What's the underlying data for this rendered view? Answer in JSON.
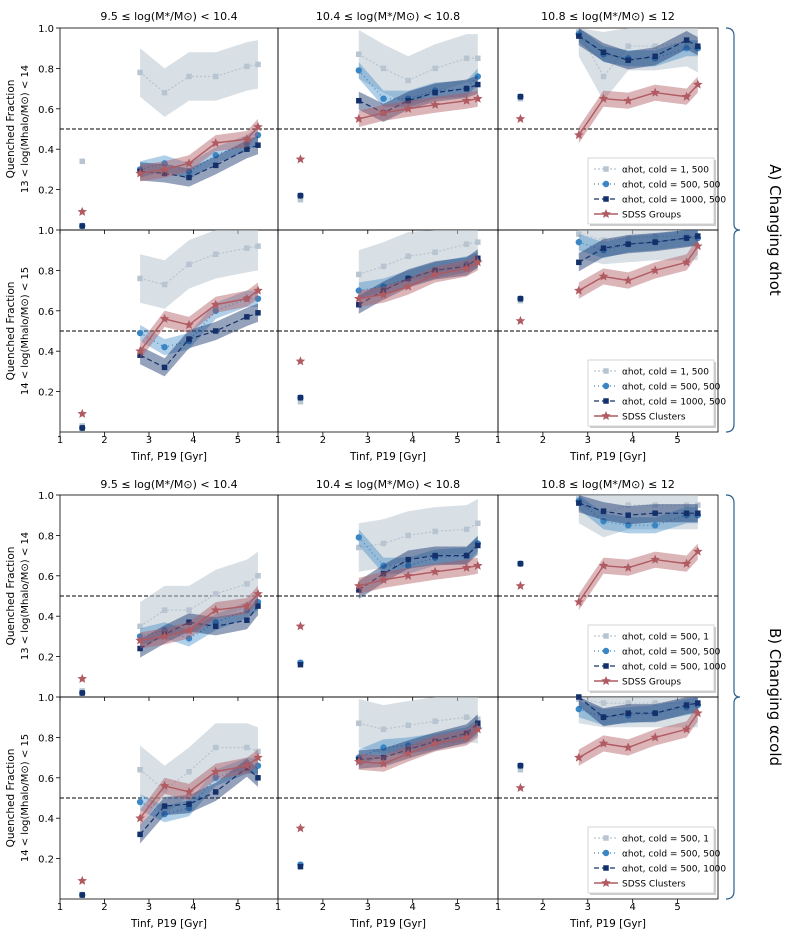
{
  "figure": {
    "col_titles": [
      "9.5 ≤ log(M*/M⊙) < 10.4",
      "10.4 ≤ log(M*/M⊙) < 10.8",
      "10.8 ≤ log(M*/M⊙) ≤ 12"
    ],
    "row_ylabels": [
      [
        "Quenched Fraction",
        "13 < log(Mhalo/M⊙) < 14"
      ],
      [
        "Quenched Fraction",
        "14 < log(Mhalo/M⊙) < 15"
      ],
      [
        "Quenched Fraction",
        "13 < log(Mhalo/M⊙) < 14"
      ],
      [
        "Quenched Fraction",
        "14 < log(Mhalo/M⊙) < 15"
      ]
    ],
    "xlabel": "Tinf, P19 [Gyr]",
    "group_labels": [
      "A) Changing αhot",
      "B) Changing αcold"
    ],
    "xticks": [
      "1",
      "2",
      "3",
      "4",
      "5"
    ],
    "yticks": [
      "0.2",
      "0.4",
      "0.6",
      "0.8",
      "1.0"
    ]
  },
  "colors": {
    "light": "#b8c4d0",
    "mid": "#3a86c5",
    "dark": "#14306a",
    "sdss": "#b05a62",
    "ref_line": "#000000"
  },
  "chart_data": [
    {
      "type": "line",
      "title": "A) Changing αhot",
      "xlabel": "Tinf, P19 [Gyr]",
      "ylabel": "Quenched Fraction",
      "xlim": [
        1,
        5.9
      ],
      "ylim": [
        0,
        1
      ],
      "reference_line_y": 0.5,
      "legends": [
        [
          "αhot, cold = 1, 500",
          "αhot, cold = 500, 500",
          "αhot, cold = 1000, 500",
          "SDSS Groups"
        ],
        [
          "αhot, cold = 1, 500",
          "αhot, cold = 500, 500",
          "αhot, cold = 1000, 500",
          "SDSS Clusters"
        ]
      ],
      "x_binned": [
        2.8,
        3.35,
        3.9,
        4.5,
        5.2,
        5.45
      ],
      "x_field": 1.5,
      "rows": [
        [
          {
            "series": [
              {
                "name": "αhot, cold = 1, 500",
                "values": [
                  0.78,
                  0.68,
                  0.76,
                  0.76,
                  0.81,
                  0.82
                ],
                "field": 0.34
              },
              {
                "name": "αhot, cold = 500, 500",
                "values": [
                  0.3,
                  0.33,
                  0.29,
                  0.37,
                  0.43,
                  0.47
                ],
                "field": 0.02
              },
              {
                "name": "αhot, cold = 1000, 500",
                "values": [
                  0.29,
                  0.28,
                  0.26,
                  0.32,
                  0.4,
                  0.42
                ],
                "field": 0.02
              },
              {
                "name": "SDSS Groups",
                "values": [
                  0.28,
                  0.3,
                  0.33,
                  0.43,
                  0.45,
                  0.51
                ],
                "field": 0.09
              }
            ]
          },
          {
            "series": [
              {
                "name": "αhot, cold = 1, 500",
                "values": [
                  0.87,
                  0.8,
                  0.74,
                  0.8,
                  0.85,
                  0.85
                ],
                "field": 0.15
              },
              {
                "name": "αhot, cold = 500, 500",
                "values": [
                  0.79,
                  0.65,
                  0.65,
                  0.69,
                  0.7,
                  0.76
                ],
                "field": 0.17
              },
              {
                "name": "αhot, cold = 1000, 500",
                "values": [
                  0.64,
                  0.58,
                  0.64,
                  0.68,
                  0.7,
                  0.72
                ],
                "field": 0.17
              },
              {
                "name": "SDSS Groups",
                "values": [
                  0.55,
                  0.58,
                  0.6,
                  0.62,
                  0.64,
                  0.65
                ],
                "field": 0.35
              }
            ]
          },
          {
            "series": [
              {
                "name": "αhot, cold = 1, 500",
                "values": [
                  0.98,
                  0.76,
                  0.91,
                  0.91,
                  0.93,
                  0.9
                ],
                "field": 0.65
              },
              {
                "name": "αhot, cold = 500, 500",
                "values": [
                  0.97,
                  0.87,
                  0.85,
                  0.85,
                  0.9,
                  0.9
                ],
                "field": 0.66
              },
              {
                "name": "αhot, cold = 1000, 500",
                "values": [
                  0.96,
                  0.88,
                  0.84,
                  0.86,
                  0.94,
                  0.91
                ],
                "field": 0.66
              },
              {
                "name": "SDSS Groups",
                "values": [
                  0.47,
                  0.65,
                  0.64,
                  0.68,
                  0.66,
                  0.72
                ],
                "field": 0.55
              }
            ]
          }
        ],
        [
          {
            "series": [
              {
                "name": "αhot, cold = 1, 500",
                "values": [
                  0.76,
                  0.73,
                  0.83,
                  0.88,
                  0.91,
                  0.92
                ],
                "field": 0.03
              },
              {
                "name": "αhot, cold = 500, 500",
                "values": [
                  0.49,
                  0.42,
                  0.45,
                  0.6,
                  0.66,
                  0.66
                ],
                "field": 0.02
              },
              {
                "name": "αhot, cold = 1000, 500",
                "values": [
                  0.38,
                  0.32,
                  0.46,
                  0.5,
                  0.57,
                  0.59
                ],
                "field": 0.02
              },
              {
                "name": "SDSS Clusters",
                "values": [
                  0.4,
                  0.56,
                  0.53,
                  0.63,
                  0.66,
                  0.7
                ],
                "field": 0.09
              }
            ]
          },
          {
            "series": [
              {
                "name": "αhot, cold = 1, 500",
                "values": [
                  0.78,
                  0.82,
                  0.87,
                  0.89,
                  0.93,
                  0.94
                ],
                "field": 0.15
              },
              {
                "name": "αhot, cold = 500, 500",
                "values": [
                  0.7,
                  0.72,
                  0.76,
                  0.8,
                  0.83,
                  0.85
                ],
                "field": 0.17
              },
              {
                "name": "αhot, cold = 1000, 500",
                "values": [
                  0.63,
                  0.7,
                  0.76,
                  0.8,
                  0.82,
                  0.86
                ],
                "field": 0.17
              },
              {
                "name": "SDSS Clusters",
                "values": [
                  0.66,
                  0.68,
                  0.72,
                  0.78,
                  0.81,
                  0.84
                ],
                "field": 0.35
              }
            ]
          },
          {
            "series": [
              {
                "name": "αhot, cold = 1, 500",
                "values": [
                  0.98,
                  0.95,
                  0.96,
                  0.97,
                  0.97,
                  0.97
                ],
                "field": 0.65
              },
              {
                "name": "αhot, cold = 500, 500",
                "values": [
                  0.94,
                  0.9,
                  0.93,
                  0.94,
                  0.96,
                  0.96
                ],
                "field": 0.66
              },
              {
                "name": "αhot, cold = 1000, 500",
                "values": [
                  0.84,
                  0.91,
                  0.93,
                  0.94,
                  0.96,
                  0.97
                ],
                "field": 0.66
              },
              {
                "name": "SDSS Clusters",
                "values": [
                  0.7,
                  0.77,
                  0.75,
                  0.8,
                  0.84,
                  0.92
                ],
                "field": 0.55
              }
            ]
          }
        ]
      ]
    },
    {
      "type": "line",
      "title": "B) Changing αcold",
      "xlabel": "Tinf, P19 [Gyr]",
      "ylabel": "Quenched Fraction",
      "xlim": [
        1,
        5.9
      ],
      "ylim": [
        0,
        1
      ],
      "reference_line_y": 0.5,
      "legends": [
        [
          "αhot, cold = 500, 1",
          "αhot, cold = 500, 500",
          "αhot, cold = 500, 1000",
          "SDSS Groups"
        ],
        [
          "αhot, cold = 500, 1",
          "αhot, cold = 500, 500",
          "αhot, cold = 500, 1000",
          "SDSS Clusters"
        ]
      ],
      "x_binned": [
        2.8,
        3.35,
        3.9,
        4.5,
        5.2,
        5.45
      ],
      "x_field": 1.5,
      "rows": [
        [
          {
            "series": [
              {
                "name": "αhot, cold = 500, 1",
                "values": [
                  0.35,
                  0.43,
                  0.43,
                  0.51,
                  0.56,
                  0.6
                ],
                "field": 0.03
              },
              {
                "name": "αhot, cold = 500, 500",
                "values": [
                  0.3,
                  0.33,
                  0.29,
                  0.37,
                  0.43,
                  0.47
                ],
                "field": 0.02
              },
              {
                "name": "αhot, cold = 500, 1000",
                "values": [
                  0.24,
                  0.31,
                  0.37,
                  0.35,
                  0.38,
                  0.45
                ],
                "field": 0.02
              },
              {
                "name": "SDSS Groups",
                "values": [
                  0.28,
                  0.3,
                  0.33,
                  0.43,
                  0.45,
                  0.51
                ],
                "field": 0.09
              }
            ]
          },
          {
            "series": [
              {
                "name": "αhot, cold = 500, 1",
                "values": [
                  0.74,
                  0.76,
                  0.8,
                  0.82,
                  0.83,
                  0.86
                ],
                "field": 0.17
              },
              {
                "name": "αhot, cold = 500, 500",
                "values": [
                  0.79,
                  0.65,
                  0.65,
                  0.69,
                  0.7,
                  0.76
                ],
                "field": 0.17
              },
              {
                "name": "αhot, cold = 500, 1000",
                "values": [
                  0.53,
                  0.61,
                  0.68,
                  0.7,
                  0.7,
                  0.75
                ],
                "field": 0.16
              },
              {
                "name": "SDSS Groups",
                "values": [
                  0.55,
                  0.58,
                  0.6,
                  0.62,
                  0.64,
                  0.65
                ],
                "field": 0.35
              }
            ]
          },
          {
            "series": [
              {
                "name": "αhot, cold = 500, 1",
                "values": [
                  0.98,
                  0.91,
                  0.95,
                  0.95,
                  0.95,
                  0.95
                ],
                "field": 0.66
              },
              {
                "name": "αhot, cold = 500, 500",
                "values": [
                  0.97,
                  0.87,
                  0.85,
                  0.85,
                  0.9,
                  0.9
                ],
                "field": 0.66
              },
              {
                "name": "αhot, cold = 500, 1000",
                "values": [
                  0.96,
                  0.92,
                  0.9,
                  0.91,
                  0.91,
                  0.91
                ],
                "field": 0.66
              },
              {
                "name": "SDSS Groups",
                "values": [
                  0.47,
                  0.65,
                  0.64,
                  0.68,
                  0.66,
                  0.72
                ],
                "field": 0.55
              }
            ]
          }
        ],
        [
          {
            "series": [
              {
                "name": "αhot, cold = 500, 1",
                "values": [
                  0.64,
                  0.54,
                  0.63,
                  0.75,
                  0.75,
                  0.73
                ],
                "field": 0.02
              },
              {
                "name": "αhot, cold = 500, 500",
                "values": [
                  0.48,
                  0.42,
                  0.45,
                  0.6,
                  0.66,
                  0.66
                ],
                "field": 0.02
              },
              {
                "name": "αhot, cold = 500, 1000",
                "values": [
                  0.32,
                  0.46,
                  0.47,
                  0.53,
                  0.65,
                  0.6
                ],
                "field": 0.02
              },
              {
                "name": "SDSS Clusters",
                "values": [
                  0.4,
                  0.56,
                  0.53,
                  0.63,
                  0.66,
                  0.7
                ],
                "field": 0.09
              }
            ]
          },
          {
            "series": [
              {
                "name": "αhot, cold = 500, 1",
                "values": [
                  0.87,
                  0.84,
                  0.86,
                  0.88,
                  0.9,
                  0.89
                ],
                "field": 0.17
              },
              {
                "name": "αhot, cold = 500, 500",
                "values": [
                  0.7,
                  0.75,
                  0.76,
                  0.78,
                  0.81,
                  0.85
                ],
                "field": 0.17
              },
              {
                "name": "αhot, cold = 500, 1000",
                "values": [
                  0.69,
                  0.7,
                  0.74,
                  0.78,
                  0.82,
                  0.87
                ],
                "field": 0.16
              },
              {
                "name": "SDSS Clusters",
                "values": [
                  0.68,
                  0.67,
                  0.72,
                  0.77,
                  0.8,
                  0.84
                ],
                "field": 0.35
              }
            ]
          },
          {
            "series": [
              {
                "name": "αhot, cold = 500, 1",
                "values": [
                  0.99,
                  0.97,
                  0.97,
                  0.97,
                  0.97,
                  0.97
                ],
                "field": 0.64
              },
              {
                "name": "αhot, cold = 500, 500",
                "values": [
                  0.94,
                  0.9,
                  0.91,
                  0.92,
                  0.95,
                  0.96
                ],
                "field": 0.66
              },
              {
                "name": "αhot, cold = 500, 1000",
                "values": [
                  1.0,
                  0.9,
                  0.92,
                  0.92,
                  0.96,
                  0.97
                ],
                "field": 0.66
              },
              {
                "name": "SDSS Clusters",
                "values": [
                  0.7,
                  0.77,
                  0.75,
                  0.8,
                  0.84,
                  0.92
                ],
                "field": 0.55
              }
            ]
          }
        ]
      ]
    }
  ]
}
